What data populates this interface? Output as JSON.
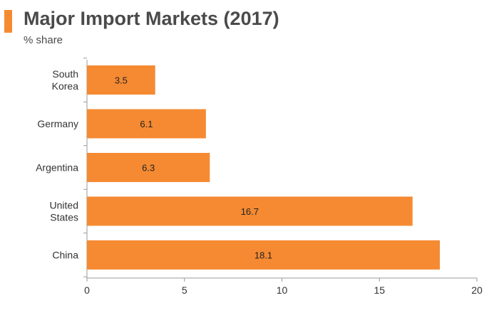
{
  "header": {
    "title": "Major Import Markets (2017)",
    "subtitle": "% share",
    "accent_color": "#f58a32"
  },
  "chart_data": {
    "type": "bar",
    "orientation": "horizontal",
    "categories": [
      [
        "South",
        "Korea"
      ],
      [
        "Germany"
      ],
      [
        "Argentina"
      ],
      [
        "United",
        "States"
      ],
      [
        "China"
      ]
    ],
    "values": [
      3.5,
      6.1,
      6.3,
      16.7,
      18.1
    ],
    "data_labels": [
      "3.5",
      "6.1",
      "6.3",
      "16.7",
      "18.1"
    ],
    "xlim": [
      0,
      20
    ],
    "x_ticks": [
      0,
      5,
      10,
      15,
      20
    ],
    "grid": false,
    "bar_color": "#f58a32",
    "title": "Major Import Markets (2017)",
    "subtitle": "% share"
  }
}
